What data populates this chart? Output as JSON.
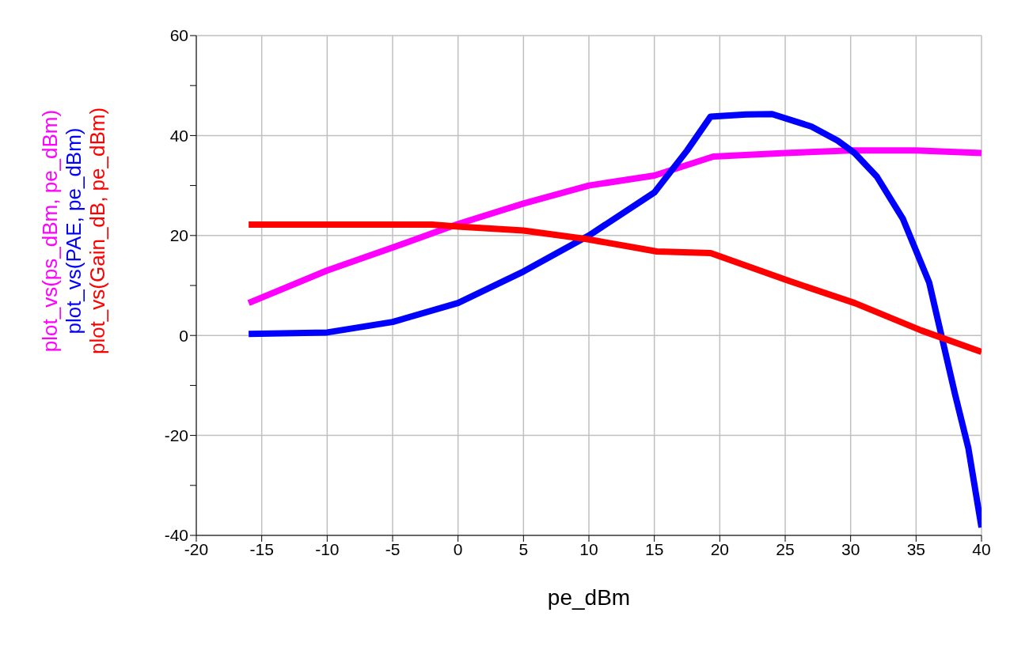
{
  "chart_data": {
    "type": "line",
    "xlabel": "pe_dBm",
    "xlim": [
      -20,
      40
    ],
    "xticks": [
      -20,
      -15,
      -10,
      -5,
      0,
      5,
      10,
      15,
      20,
      25,
      30,
      35,
      40
    ],
    "ylim": [
      -40,
      60
    ],
    "yticks": [
      -40,
      {
        "value": -30,
        "label": null
      },
      -20,
      {
        "value": -10,
        "label": null
      },
      0,
      {
        "value": 10,
        "label": null
      },
      20,
      {
        "value": 30,
        "label": null
      },
      40,
      {
        "value": 50,
        "label": null
      },
      60
    ],
    "grid": true,
    "marker": "none",
    "line_style": "solid",
    "series": [
      {
        "name": "plot_vs(ps_dBm, pe_dBm)",
        "color": "#ff00ff",
        "x": [
          -16,
          -10,
          -5,
          0,
          5,
          10,
          15,
          19.5,
          25,
          30,
          35,
          40
        ],
        "values": [
          6.5,
          13,
          17.6,
          22.3,
          26.4,
          30,
          32,
          35.8,
          36.5,
          37,
          37,
          36.5
        ]
      },
      {
        "name": "plot_vs(PAE, pe_dBm)",
        "color": "#0000ff",
        "x": [
          -16,
          -10,
          -5,
          0,
          5,
          10,
          15,
          17.5,
          19.3,
          22,
          24,
          27,
          29,
          30.3,
          32,
          34,
          36,
          36.6,
          38,
          39,
          40
        ],
        "values": [
          0.3,
          0.6,
          2.7,
          6.5,
          12.8,
          20,
          28.6,
          37,
          43.8,
          44.2,
          44.3,
          41.8,
          39,
          36.5,
          31.8,
          23.3,
          10.6,
          3.8,
          -12,
          -22.6,
          -38.4
        ]
      },
      {
        "name": "plot_vs(Gain_dB, pe_dBm)",
        "color": "#ff0000",
        "x": [
          -16,
          -10,
          -5,
          -2,
          0,
          5,
          9.8,
          15.2,
          19.3,
          25.3,
          30.3,
          35.4,
          40
        ],
        "values": [
          22.2,
          22.2,
          22.2,
          22.2,
          21.8,
          21,
          19.3,
          16.8,
          16.5,
          10.9,
          6.5,
          1,
          -3.3
        ]
      }
    ]
  }
}
